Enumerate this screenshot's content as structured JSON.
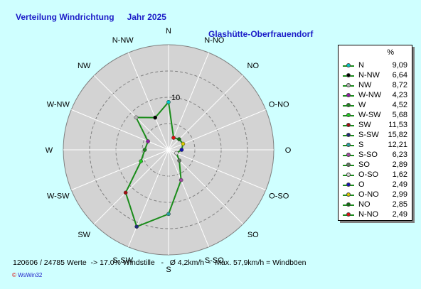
{
  "header": {
    "title": "Verteilung Windrichtung",
    "year_label": "Jahr 2025",
    "station": "Glashütte-Oberfrauendorf"
  },
  "chart_data": {
    "type": "radar",
    "title": "Verteilung Windrichtung",
    "unit": "%",
    "ring_label": "10",
    "rmax": 20,
    "rings": [
      5,
      10,
      15,
      20
    ],
    "grid": true,
    "legend_position": "right",
    "series_color": "#1a8c1a",
    "directions": [
      "N",
      "N-NW",
      "NW",
      "W-NW",
      "W",
      "W-SW",
      "SW",
      "S-SW",
      "S",
      "S-SO",
      "SO",
      "O-SO",
      "O",
      "O-NO",
      "NO",
      "N-NO"
    ],
    "axis_labels": [
      "N",
      "N-NO",
      "NO",
      "O-NO",
      "O",
      "O-SO",
      "SO",
      "S-SO",
      "S",
      "S-SW",
      "SW",
      "W-SW",
      "W",
      "W-NW",
      "NW",
      "N-NW"
    ],
    "values": [
      9.09,
      6.64,
      8.72,
      4.23,
      4.52,
      5.68,
      11.53,
      15.82,
      12.21,
      6.23,
      2.89,
      1.62,
      2.49,
      2.99,
      2.85,
      2.49
    ],
    "marker_colors": [
      "#00c8c8",
      "#000000",
      "#b4b4b4",
      "#8c1ea0",
      "#228822",
      "#22cc22",
      "#a01010",
      "#1e2a78",
      "#2aa0a0",
      "#a04ca0",
      "#607860",
      "#d8d8d8",
      "#1414b4",
      "#d8c800",
      "#107010",
      "#dd1010"
    ]
  },
  "legend": {
    "unit": "%",
    "entries": [
      {
        "name": "N",
        "value": "9,09"
      },
      {
        "name": "N-NW",
        "value": "6,64"
      },
      {
        "name": "NW",
        "value": "8,72"
      },
      {
        "name": "W-NW",
        "value": "4,23"
      },
      {
        "name": "W",
        "value": "4,52"
      },
      {
        "name": "W-SW",
        "value": "5,68"
      },
      {
        "name": "SW",
        "value": "11,53"
      },
      {
        "name": "S-SW",
        "value": "15,82"
      },
      {
        "name": "S",
        "value": "12,21"
      },
      {
        "name": "S-SO",
        "value": "6,23"
      },
      {
        "name": "SO",
        "value": "2,89"
      },
      {
        "name": "O-SO",
        "value": "1,62"
      },
      {
        "name": "O",
        "value": "2,49"
      },
      {
        "name": "O-NO",
        "value": "2,99"
      },
      {
        "name": "NO",
        "value": "2,85"
      },
      {
        "name": "N-NO",
        "value": "2,49"
      }
    ]
  },
  "footer": {
    "text": "120606 / 24785 Werte  -> 17.0% Windstille   -   Ø 4,2km/h  -  Max. 57,9km/h = Windböen",
    "credit_mark": "©",
    "credit": "WsWin32"
  }
}
